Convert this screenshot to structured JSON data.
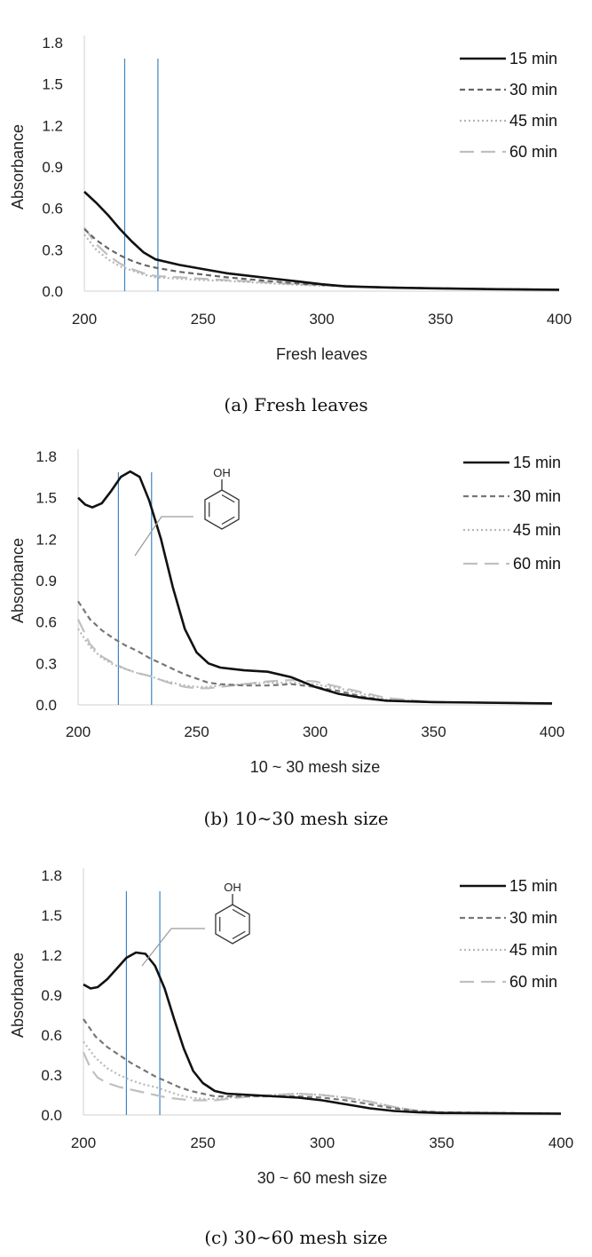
{
  "chart_data": [
    {
      "type": "line",
      "caption": "(a) Fresh leaves",
      "xlabel": "Fresh leaves",
      "ylabel": "Absorbance",
      "xlim": [
        200,
        400
      ],
      "ylim": [
        0.0,
        1.8
      ],
      "xticks": [
        "200",
        "250",
        "300",
        "350",
        "400"
      ],
      "yticks": [
        "0.0",
        "0.3",
        "0.6",
        "0.9",
        "1.2",
        "1.5",
        "1.8"
      ],
      "legend_position": "top-right",
      "vertical_markers": [
        217,
        231
      ],
      "series": [
        {
          "name": "15 min",
          "color": "#111111",
          "style": "solid",
          "x": [
            200,
            205,
            210,
            215,
            220,
            225,
            230,
            240,
            250,
            260,
            270,
            280,
            290,
            300,
            310,
            320,
            330,
            350,
            370,
            400
          ],
          "y": [
            0.72,
            0.64,
            0.55,
            0.45,
            0.36,
            0.28,
            0.23,
            0.19,
            0.16,
            0.13,
            0.11,
            0.09,
            0.07,
            0.05,
            0.035,
            0.03,
            0.025,
            0.02,
            0.015,
            0.01
          ]
        },
        {
          "name": "30 min",
          "color": "#666666",
          "style": "dashed",
          "x": [
            200,
            205,
            210,
            215,
            220,
            225,
            230,
            240,
            250,
            260,
            270,
            280,
            290,
            300,
            310,
            320,
            350,
            400
          ],
          "y": [
            0.45,
            0.37,
            0.31,
            0.26,
            0.22,
            0.19,
            0.17,
            0.14,
            0.12,
            0.1,
            0.085,
            0.07,
            0.055,
            0.045,
            0.035,
            0.03,
            0.02,
            0.01
          ]
        },
        {
          "name": "45 min",
          "color": "#b5b5b5",
          "style": "dotted",
          "x": [
            200,
            205,
            210,
            215,
            220,
            225,
            230,
            240,
            250,
            260,
            270,
            280,
            290,
            300,
            310,
            320,
            350,
            400
          ],
          "y": [
            0.41,
            0.3,
            0.23,
            0.18,
            0.15,
            0.12,
            0.1,
            0.09,
            0.08,
            0.075,
            0.065,
            0.055,
            0.045,
            0.04,
            0.035,
            0.03,
            0.02,
            0.01
          ]
        },
        {
          "name": "60 min",
          "color": "#bfbfbf",
          "style": "longdash",
          "x": [
            200,
            205,
            210,
            215,
            220,
            225,
            230,
            240,
            250,
            260,
            270,
            280,
            290,
            300,
            310,
            320,
            350,
            400
          ],
          "y": [
            0.46,
            0.34,
            0.26,
            0.2,
            0.16,
            0.13,
            0.11,
            0.1,
            0.09,
            0.08,
            0.07,
            0.06,
            0.05,
            0.045,
            0.04,
            0.03,
            0.02,
            0.01
          ]
        }
      ]
    },
    {
      "type": "line",
      "caption": "(b) 10∼30 mesh size",
      "xlabel": "10 ~ 30 mesh size",
      "ylabel": "Absorbance",
      "xlim": [
        200,
        400
      ],
      "ylim": [
        0.0,
        1.8
      ],
      "xticks": [
        "200",
        "250",
        "300",
        "350",
        "400"
      ],
      "yticks": [
        "0.0",
        "0.3",
        "0.6",
        "0.9",
        "1.2",
        "1.5",
        "1.8"
      ],
      "legend_position": "top-right",
      "vertical_markers": [
        217,
        231
      ],
      "annotation": {
        "label": "OH",
        "structure": "phenol"
      },
      "series": [
        {
          "name": "15 min",
          "color": "#111111",
          "style": "solid",
          "x": [
            200,
            203,
            206,
            210,
            214,
            218,
            222,
            226,
            230,
            235,
            240,
            245,
            250,
            255,
            260,
            270,
            280,
            290,
            300,
            310,
            320,
            330,
            350,
            400
          ],
          "y": [
            1.5,
            1.45,
            1.43,
            1.46,
            1.55,
            1.65,
            1.69,
            1.65,
            1.48,
            1.2,
            0.85,
            0.55,
            0.38,
            0.3,
            0.27,
            0.25,
            0.24,
            0.2,
            0.13,
            0.08,
            0.05,
            0.03,
            0.02,
            0.01
          ]
        },
        {
          "name": "30 min",
          "color": "#777777",
          "style": "dashed",
          "x": [
            200,
            205,
            210,
            215,
            220,
            225,
            230,
            235,
            240,
            245,
            250,
            255,
            260,
            270,
            280,
            290,
            300,
            310,
            320,
            330,
            350,
            400
          ],
          "y": [
            0.75,
            0.62,
            0.54,
            0.48,
            0.43,
            0.39,
            0.34,
            0.3,
            0.26,
            0.22,
            0.19,
            0.16,
            0.15,
            0.14,
            0.14,
            0.15,
            0.13,
            0.1,
            0.06,
            0.03,
            0.02,
            0.01
          ]
        },
        {
          "name": "45 min",
          "color": "#b8b8b8",
          "style": "dotted",
          "x": [
            200,
            205,
            210,
            215,
            220,
            225,
            230,
            235,
            240,
            245,
            250,
            255,
            260,
            270,
            280,
            290,
            300,
            310,
            320,
            330,
            350,
            400
          ],
          "y": [
            0.55,
            0.42,
            0.34,
            0.29,
            0.26,
            0.23,
            0.21,
            0.18,
            0.16,
            0.14,
            0.13,
            0.13,
            0.14,
            0.15,
            0.16,
            0.16,
            0.15,
            0.12,
            0.08,
            0.04,
            0.02,
            0.01
          ]
        },
        {
          "name": "60 min",
          "color": "#c0c0c0",
          "style": "longdash",
          "x": [
            200,
            205,
            210,
            215,
            220,
            225,
            230,
            235,
            240,
            245,
            250,
            255,
            260,
            270,
            280,
            290,
            300,
            310,
            320,
            330,
            350,
            400
          ],
          "y": [
            0.62,
            0.44,
            0.35,
            0.3,
            0.26,
            0.23,
            0.21,
            0.18,
            0.15,
            0.13,
            0.12,
            0.12,
            0.13,
            0.15,
            0.17,
            0.18,
            0.17,
            0.13,
            0.09,
            0.05,
            0.02,
            0.01
          ]
        }
      ]
    },
    {
      "type": "line",
      "caption": "(c) 30∼60 mesh size",
      "xlabel": "30 ~ 60 mesh size",
      "ylabel": "Absorbance",
      "xlim": [
        200,
        400
      ],
      "ylim": [
        0.0,
        1.8
      ],
      "xticks": [
        "200",
        "250",
        "300",
        "350",
        "400"
      ],
      "yticks": [
        "0.0",
        "0.3",
        "0.6",
        "0.9",
        "1.2",
        "1.5",
        "1.8"
      ],
      "legend_position": "top-right",
      "vertical_markers": [
        218,
        232
      ],
      "annotation": {
        "label": "OH",
        "structure": "phenol"
      },
      "series": [
        {
          "name": "15 min",
          "color": "#111111",
          "style": "solid",
          "x": [
            200,
            203,
            206,
            210,
            214,
            218,
            222,
            226,
            230,
            234,
            238,
            242,
            246,
            250,
            255,
            260,
            270,
            280,
            290,
            300,
            310,
            320,
            330,
            340,
            350,
            400
          ],
          "y": [
            0.98,
            0.95,
            0.96,
            1.02,
            1.1,
            1.18,
            1.22,
            1.21,
            1.12,
            0.95,
            0.72,
            0.5,
            0.33,
            0.24,
            0.18,
            0.16,
            0.15,
            0.14,
            0.13,
            0.11,
            0.08,
            0.05,
            0.03,
            0.02,
            0.015,
            0.01
          ]
        },
        {
          "name": "30 min",
          "color": "#777777",
          "style": "dashed",
          "x": [
            200,
            205,
            210,
            215,
            220,
            225,
            230,
            235,
            240,
            245,
            250,
            255,
            260,
            270,
            280,
            290,
            300,
            310,
            320,
            330,
            340,
            350,
            400
          ],
          "y": [
            0.72,
            0.59,
            0.51,
            0.45,
            0.39,
            0.34,
            0.29,
            0.25,
            0.21,
            0.18,
            0.16,
            0.14,
            0.14,
            0.14,
            0.14,
            0.14,
            0.13,
            0.11,
            0.08,
            0.05,
            0.03,
            0.02,
            0.01
          ]
        },
        {
          "name": "45 min",
          "color": "#b8b8b8",
          "style": "dotted",
          "x": [
            200,
            205,
            210,
            215,
            220,
            225,
            230,
            235,
            240,
            245,
            250,
            255,
            260,
            270,
            280,
            290,
            300,
            310,
            320,
            330,
            340,
            350,
            400
          ],
          "y": [
            0.55,
            0.43,
            0.35,
            0.3,
            0.26,
            0.23,
            0.21,
            0.18,
            0.15,
            0.13,
            0.12,
            0.12,
            0.13,
            0.14,
            0.15,
            0.16,
            0.15,
            0.13,
            0.1,
            0.06,
            0.03,
            0.02,
            0.01
          ]
        },
        {
          "name": "60 min",
          "color": "#c0c0c0",
          "style": "longdash",
          "x": [
            200,
            203,
            206,
            210,
            215,
            220,
            225,
            230,
            235,
            240,
            245,
            250,
            255,
            260,
            270,
            280,
            290,
            300,
            310,
            320,
            330,
            340,
            350,
            400
          ],
          "y": [
            0.47,
            0.35,
            0.28,
            0.24,
            0.21,
            0.19,
            0.17,
            0.15,
            0.13,
            0.12,
            0.11,
            0.11,
            0.11,
            0.12,
            0.14,
            0.15,
            0.16,
            0.15,
            0.13,
            0.1,
            0.06,
            0.03,
            0.02,
            0.01
          ]
        }
      ]
    }
  ]
}
